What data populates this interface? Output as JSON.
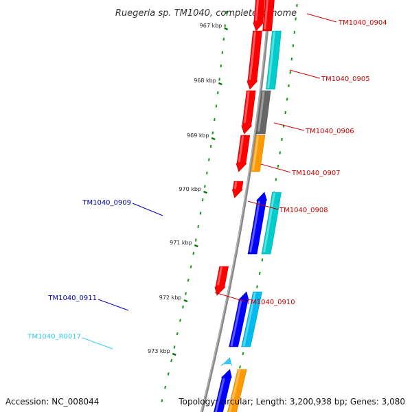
{
  "title": "Ruegeria sp. TM1040, complete genome",
  "footer": {
    "accession": "Accession: NC_008044",
    "topology": "Topology: circular; Length: 3,200,938 bp; Genes: 3,080"
  },
  "ticks": [
    "967 kbp",
    "968 kbp",
    "969 kbp",
    "970 kbp",
    "971 kbp",
    "972 kbp",
    "973 kbp"
  ],
  "genes": [
    {
      "label": "TM1040_0904",
      "strand": "+",
      "color": "#ff0000",
      "cog_color": "#ff0000",
      "label_color": "#cc0000"
    },
    {
      "label": "TM1040_0905",
      "strand": "+",
      "color": "#ff0000",
      "cog_color": "#00cccc",
      "label_color": "#cc0000"
    },
    {
      "label": "TM1040_0906",
      "strand": "+",
      "color": "#ff0000",
      "cog_color": "#666666",
      "label_color": "#cc0000"
    },
    {
      "label": "TM1040_0907",
      "strand": "+",
      "color": "#ff0000",
      "cog_color": "#ff9900",
      "label_color": "#cc0000"
    },
    {
      "label": "TM1040_0908",
      "strand": "+",
      "color": "#ff0000",
      "cog_color": "",
      "label_color": "#cc0000"
    },
    {
      "label": "TM1040_0909",
      "strand": "-",
      "color": "#0000ff",
      "cog_color": "#00cccc",
      "label_color": "#0000aa"
    },
    {
      "label": "TM1040_0910",
      "strand": "+",
      "color": "#ff0000",
      "cog_color": "",
      "label_color": "#cc0000"
    },
    {
      "label": "TM1040_0911",
      "strand": "-",
      "color": "#0000ff",
      "cog_color": "#00bbee",
      "label_color": "#0000aa"
    },
    {
      "label": "TM1040_R0017",
      "strand": "-",
      "color": "#33ccff",
      "cog_color": "",
      "label_color": "#33ccee"
    },
    {
      "label": "",
      "strand": "-",
      "color": "#0000ff",
      "cog_color": "#ff9900",
      "label_color": ""
    }
  ],
  "colors": {
    "backbone": "#888888",
    "tick": "#007700",
    "dot": "#119911"
  }
}
